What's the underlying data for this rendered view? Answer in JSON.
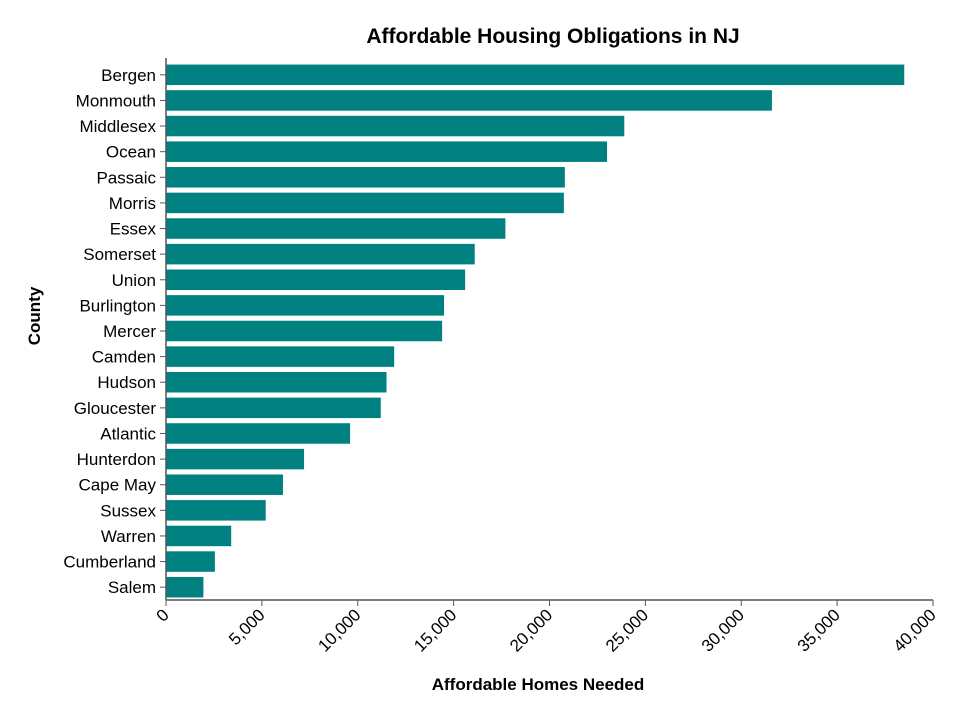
{
  "chart_data": {
    "type": "bar",
    "orientation": "horizontal",
    "title": "Affordable Housing Obligations in NJ",
    "xlabel": "Affordable Homes Needed",
    "ylabel": "County",
    "xlim": [
      0,
      40000
    ],
    "x_ticks": [
      0,
      5000,
      10000,
      15000,
      20000,
      25000,
      30000,
      35000,
      40000
    ],
    "x_tick_labels": [
      "0",
      "5,000",
      "10,000",
      "15,000",
      "20,000",
      "25,000",
      "30,000",
      "35,000",
      "40,000"
    ],
    "grid": false,
    "bar_color": "#008080",
    "categories": [
      "Bergen",
      "Monmouth",
      "Middlesex",
      "Ocean",
      "Passaic",
      "Morris",
      "Essex",
      "Somerset",
      "Union",
      "Burlington",
      "Mercer",
      "Camden",
      "Hudson",
      "Gloucester",
      "Atlantic",
      "Hunterdon",
      "Cape May",
      "Sussex",
      "Warren",
      "Cumberland",
      "Salem"
    ],
    "values": [
      38500,
      31600,
      23900,
      23000,
      20800,
      20750,
      17700,
      16100,
      15600,
      14500,
      14400,
      11900,
      11500,
      11200,
      9600,
      7200,
      6100,
      5200,
      3400,
      2550,
      1950
    ]
  }
}
